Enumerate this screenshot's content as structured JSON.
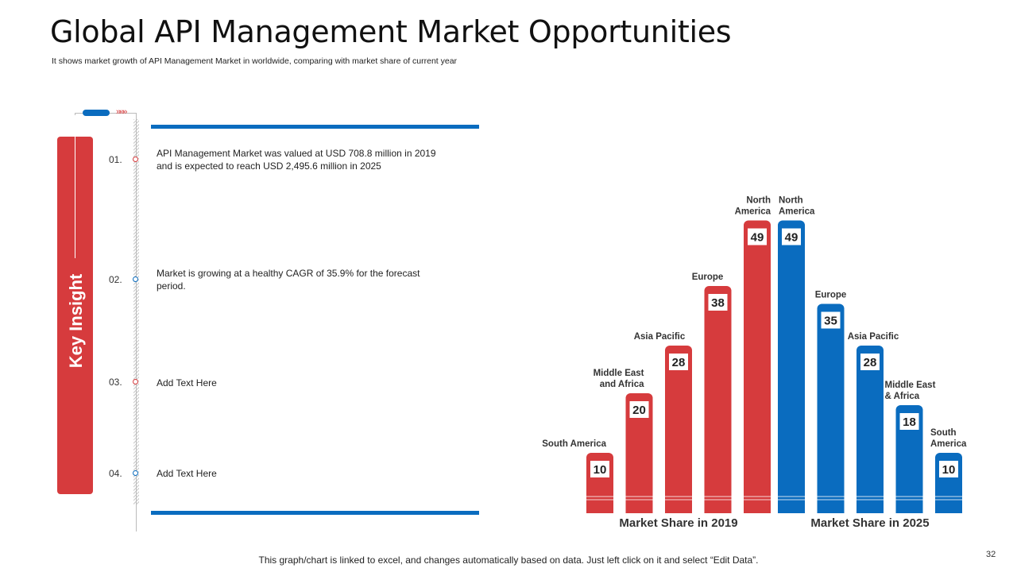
{
  "header": {
    "title": "Global API Management Market Opportunities",
    "subtitle": "It shows market growth of API  Management Market in worldwide, comparing with market share of current year"
  },
  "insight": {
    "label": "Key Insight",
    "items": [
      {
        "num": "01.",
        "text": "API Management Market was valued at USD 708.8 million in 2019 and is expected to reach USD 2,495.6 million in 2025",
        "dot": "red"
      },
      {
        "num": "02.",
        "text": "Market is growing at a healthy CAGR of 35.9% for the forecast period.",
        "dot": "blue"
      },
      {
        "num": "03.",
        "text": "Add Text Here",
        "dot": "red"
      },
      {
        "num": "04.",
        "text": "Add Text Here",
        "dot": "blue"
      }
    ]
  },
  "colors": {
    "red": "#d63b3d",
    "blue": "#0a6cbf"
  },
  "chart_data": {
    "type": "bar",
    "ylim": [
      0,
      52
    ],
    "series": [
      {
        "name": "Market Share in 2019",
        "color": "#d63b3d",
        "categories": [
          "South America",
          "Middle East and Africa",
          "Asia Pacific",
          "Europe",
          "North America"
        ],
        "values": [
          10,
          20,
          28,
          38,
          49
        ]
      },
      {
        "name": "Market Share in 2025",
        "color": "#0a6cbf",
        "categories": [
          "North America",
          "Europe",
          "Asia Pacific",
          "Middle East & Africa",
          "South America"
        ],
        "values": [
          49,
          35,
          28,
          18,
          10
        ]
      }
    ]
  },
  "footer": {
    "note": "This graph/chart is linked to excel, and changes automatically based on data. Just left click on it and select “Edit Data”.",
    "page": "32"
  }
}
